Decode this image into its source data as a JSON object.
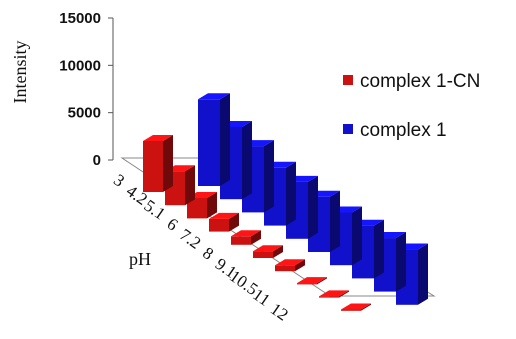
{
  "chart_data": {
    "type": "bar",
    "style": "3d-clustered-depth",
    "ylabel": "Intensity",
    "xlabel": "pH",
    "ylim": [
      0,
      15000
    ],
    "yticks": [
      "15000",
      "10000",
      "5000",
      "0"
    ],
    "ytick_values": [
      15000,
      10000,
      5000,
      0
    ],
    "categories": [
      "3",
      "4.2",
      "5.1",
      "6",
      "7.2",
      "8",
      "9.1",
      "10.5",
      "11",
      "12"
    ],
    "series": [
      {
        "name": "complex 1-CN",
        "color": "#cc1111",
        "values": [
          6000,
          4000,
          2400,
          1500,
          1000,
          800,
          700,
          150,
          150,
          150
        ]
      },
      {
        "name": "complex 1",
        "color": "#1111cc",
        "values": [
          10200,
          8500,
          7800,
          6800,
          6700,
          6500,
          6200,
          6200,
          6300,
          6500
        ]
      }
    ],
    "legend_position": "right",
    "grid": false
  }
}
